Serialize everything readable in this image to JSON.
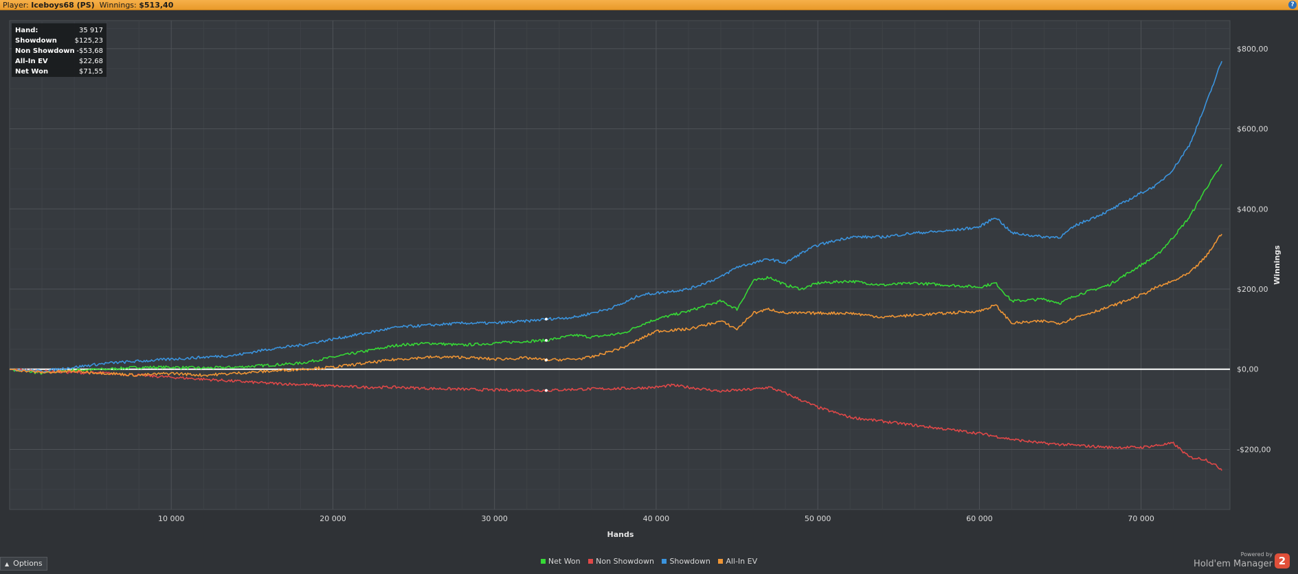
{
  "header": {
    "player_label": "Player:",
    "player_name": "Iceboys68 (PS)",
    "winnings_label": "Winnings:",
    "winnings_value": "$513,40",
    "help_glyph": "?"
  },
  "infobox": {
    "rows": [
      {
        "label": "Hand:",
        "value": "35 917"
      },
      {
        "label": "Showdown",
        "value": "$125,23"
      },
      {
        "label": "Non Showdown",
        "value": "-$53,68"
      },
      {
        "label": "All-In EV",
        "value": "$22,68"
      },
      {
        "label": "Net Won",
        "value": "$71,55"
      }
    ]
  },
  "footer": {
    "options_label": "Options",
    "powered_small": "Powered by",
    "powered_big": "Hold'em Manager",
    "logo_glyph": "2"
  },
  "chart_data": {
    "type": "line",
    "xlabel": "Hands",
    "ylabel": "Winnings",
    "xlim": [
      0,
      75500
    ],
    "ylim": [
      -350,
      870
    ],
    "x_ticks": [
      10000,
      20000,
      30000,
      40000,
      50000,
      60000,
      70000
    ],
    "x_tick_labels": [
      "10 000",
      "20 000",
      "30 000",
      "40 000",
      "50 000",
      "60 000",
      "70 000"
    ],
    "y_ticks": [
      -200,
      0,
      200,
      400,
      600,
      800
    ],
    "y_tick_labels": [
      "-$200,00",
      "$0,00",
      "$200,00",
      "$400,00",
      "$600,00",
      "$800,00"
    ],
    "grid": true,
    "legend_position": "bottom-center",
    "cursor_x": 33200,
    "series": [
      {
        "name": "Net Won",
        "color": "#36d936",
        "x": [
          0,
          2000,
          4000,
          6000,
          8000,
          10000,
          12000,
          14000,
          16000,
          18000,
          20000,
          22000,
          24000,
          26000,
          28000,
          30000,
          32000,
          33200,
          35000,
          36000,
          38000,
          39000,
          40000,
          42000,
          44000,
          45000,
          46000,
          47000,
          48000,
          49000,
          50000,
          52000,
          54000,
          56000,
          58000,
          60000,
          61000,
          62000,
          64000,
          65000,
          66000,
          68000,
          70000,
          71000,
          72000,
          73000,
          74000,
          75000
        ],
        "y": [
          0,
          -10,
          -2,
          0,
          5,
          5,
          3,
          5,
          10,
          15,
          30,
          45,
          60,
          65,
          60,
          65,
          70,
          72,
          85,
          80,
          90,
          110,
          125,
          145,
          170,
          150,
          220,
          230,
          210,
          200,
          215,
          220,
          210,
          215,
          210,
          205,
          215,
          170,
          175,
          165,
          185,
          210,
          260,
          285,
          330,
          380,
          450,
          510
        ]
      },
      {
        "name": "Non Showdown",
        "color": "#e04848",
        "x": [
          0,
          2000,
          4000,
          6000,
          8000,
          10000,
          12000,
          14000,
          16000,
          18000,
          20000,
          22000,
          24000,
          26000,
          28000,
          30000,
          32000,
          33200,
          35000,
          38000,
          40000,
          41000,
          42000,
          44000,
          46000,
          47000,
          48000,
          50000,
          52000,
          54000,
          56000,
          58000,
          60000,
          62000,
          64000,
          66000,
          68000,
          70000,
          71000,
          72000,
          73000,
          74000,
          75000
        ],
        "y": [
          0,
          -5,
          -8,
          -10,
          -15,
          -20,
          -25,
          -30,
          -35,
          -38,
          -42,
          -45,
          -45,
          -48,
          -50,
          -52,
          -52,
          -53,
          -50,
          -48,
          -45,
          -40,
          -45,
          -55,
          -50,
          -45,
          -60,
          -95,
          -120,
          -130,
          -140,
          -150,
          -160,
          -175,
          -185,
          -190,
          -195,
          -195,
          -190,
          -185,
          -220,
          -225,
          -250
        ]
      },
      {
        "name": "Showdown",
        "color": "#3b94de",
        "x": [
          0,
          2000,
          4000,
          6000,
          8000,
          10000,
          12000,
          14000,
          16000,
          18000,
          20000,
          22000,
          24000,
          26000,
          28000,
          30000,
          32000,
          33200,
          35000,
          37000,
          38000,
          39000,
          40000,
          42000,
          44000,
          45000,
          46000,
          47000,
          48000,
          49000,
          50000,
          52000,
          54000,
          56000,
          58000,
          60000,
          61000,
          62000,
          64000,
          65000,
          66000,
          68000,
          70000,
          71000,
          72000,
          73000,
          74000,
          75000
        ],
        "y": [
          0,
          -5,
          5,
          15,
          20,
          25,
          30,
          35,
          50,
          60,
          75,
          90,
          105,
          110,
          115,
          115,
          120,
          125,
          130,
          150,
          165,
          185,
          190,
          200,
          230,
          255,
          265,
          275,
          265,
          290,
          310,
          330,
          330,
          340,
          345,
          355,
          380,
          340,
          330,
          330,
          360,
          395,
          440,
          460,
          500,
          560,
          660,
          770
        ]
      },
      {
        "name": "All-In EV",
        "color": "#ef9535",
        "x": [
          0,
          2000,
          4000,
          6000,
          8000,
          10000,
          12000,
          14000,
          16000,
          18000,
          20000,
          22000,
          24000,
          26000,
          28000,
          30000,
          32000,
          33200,
          35000,
          36000,
          38000,
          39000,
          40000,
          42000,
          44000,
          45000,
          46000,
          47000,
          48000,
          50000,
          52000,
          54000,
          56000,
          58000,
          60000,
          61000,
          62000,
          64000,
          65000,
          66000,
          68000,
          70000,
          71000,
          72000,
          73000,
          74000,
          75000
        ],
        "y": [
          0,
          -8,
          -5,
          -10,
          -15,
          -10,
          -15,
          -10,
          -5,
          0,
          5,
          15,
          25,
          30,
          30,
          25,
          28,
          23,
          25,
          30,
          55,
          75,
          95,
          100,
          120,
          100,
          140,
          150,
          140,
          140,
          140,
          130,
          135,
          140,
          145,
          160,
          115,
          120,
          115,
          130,
          155,
          185,
          205,
          220,
          240,
          280,
          340
        ]
      }
    ]
  }
}
